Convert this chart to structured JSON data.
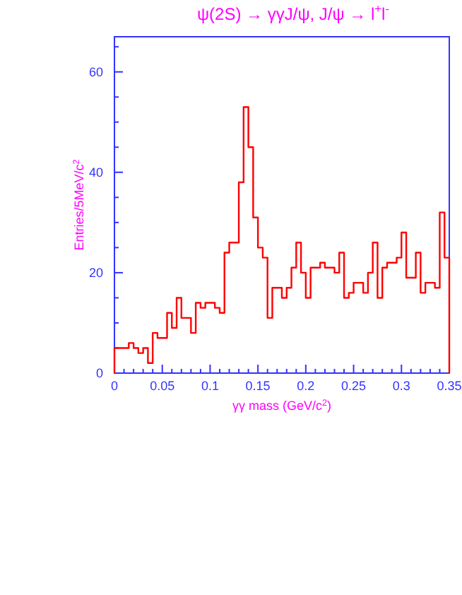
{
  "chart_data": {
    "type": "histogram",
    "title": "ψ(2S) → γγJ/ψ, J/ψ → l$^{+}$l$^{-}$",
    "xlabel": "γγ mass (GeV/c$^{2}$)",
    "ylabel": "Entries/5MeV/c$^{2}$",
    "bins": [
      0,
      0.005,
      0.01,
      0.015,
      0.02,
      0.025,
      0.03,
      0.035,
      0.04,
      0.045,
      0.05,
      0.055,
      0.06,
      0.065,
      0.07,
      0.075,
      0.08,
      0.085,
      0.09,
      0.095,
      0.1,
      0.105,
      0.11,
      0.115,
      0.12,
      0.125,
      0.13,
      0.135,
      0.14,
      0.145,
      0.15,
      0.155,
      0.16,
      0.165,
      0.17,
      0.175,
      0.18,
      0.185,
      0.19,
      0.195,
      0.2,
      0.205,
      0.21,
      0.215,
      0.22,
      0.225,
      0.23,
      0.235,
      0.24,
      0.245,
      0.25,
      0.255,
      0.26,
      0.265,
      0.27,
      0.275,
      0.28,
      0.285,
      0.29,
      0.295,
      0.3,
      0.305,
      0.31,
      0.315,
      0.32,
      0.325,
      0.33,
      0.335,
      0.34,
      0.345,
      0.35
    ],
    "values": [
      5,
      5,
      5,
      6,
      5,
      4,
      5,
      2,
      8,
      7,
      7,
      12,
      9,
      15,
      11,
      11,
      8,
      14,
      13,
      14,
      14,
      13,
      12,
      24,
      26,
      26,
      38,
      53,
      45,
      31,
      25,
      23,
      11,
      17,
      17,
      15,
      17,
      21,
      26,
      20,
      15,
      21,
      21,
      22,
      21,
      21,
      20,
      24,
      15,
      16,
      18,
      18,
      16,
      20,
      26,
      15,
      21,
      22,
      22,
      23,
      28,
      19,
      19,
      24,
      16,
      18,
      18,
      17,
      32,
      23
    ],
    "color": "#ff0000",
    "xlim": [
      0,
      0.35
    ],
    "ylim": [
      0,
      67
    ],
    "xticks": [
      0,
      {
        "value": 0.01,
        "label": null
      },
      {
        "value": 0.02,
        "label": null
      },
      {
        "value": 0.03,
        "label": null
      },
      {
        "value": 0.04,
        "label": null
      },
      0.05,
      {
        "value": 0.06,
        "label": null
      },
      {
        "value": 0.07,
        "label": null
      },
      {
        "value": 0.08,
        "label": null
      },
      {
        "value": 0.09,
        "label": null
      },
      0.1,
      {
        "value": 0.11,
        "label": null
      },
      {
        "value": 0.12,
        "label": null
      },
      {
        "value": 0.13,
        "label": null
      },
      {
        "value": 0.14,
        "label": null
      },
      0.15,
      {
        "value": 0.16,
        "label": null
      },
      {
        "value": 0.17,
        "label": null
      },
      {
        "value": 0.18,
        "label": null
      },
      {
        "value": 0.19,
        "label": null
      },
      0.2,
      {
        "value": 0.21,
        "label": null
      },
      {
        "value": 0.22,
        "label": null
      },
      {
        "value": 0.23,
        "label": null
      },
      {
        "value": 0.24,
        "label": null
      },
      0.25,
      {
        "value": 0.26,
        "label": null
      },
      {
        "value": 0.27,
        "label": null
      },
      {
        "value": 0.28,
        "label": null
      },
      {
        "value": 0.29,
        "label": null
      },
      0.3,
      {
        "value": 0.31,
        "label": null
      },
      {
        "value": 0.32,
        "label": null
      },
      {
        "value": 0.33,
        "label": null
      },
      {
        "value": 0.34,
        "label": null
      },
      0.35
    ],
    "yticks": [
      0,
      {
        "value": 5,
        "label": null
      },
      {
        "value": 10,
        "label": null
      },
      {
        "value": 15,
        "label": null
      },
      20,
      {
        "value": 25,
        "label": null
      },
      {
        "value": 30,
        "label": null
      },
      {
        "value": 35,
        "label": null
      },
      40,
      {
        "value": 45,
        "label": null
      },
      {
        "value": 50,
        "label": null
      },
      {
        "value": 55,
        "label": null
      },
      60,
      {
        "value": 65,
        "label": null
      }
    ]
  }
}
